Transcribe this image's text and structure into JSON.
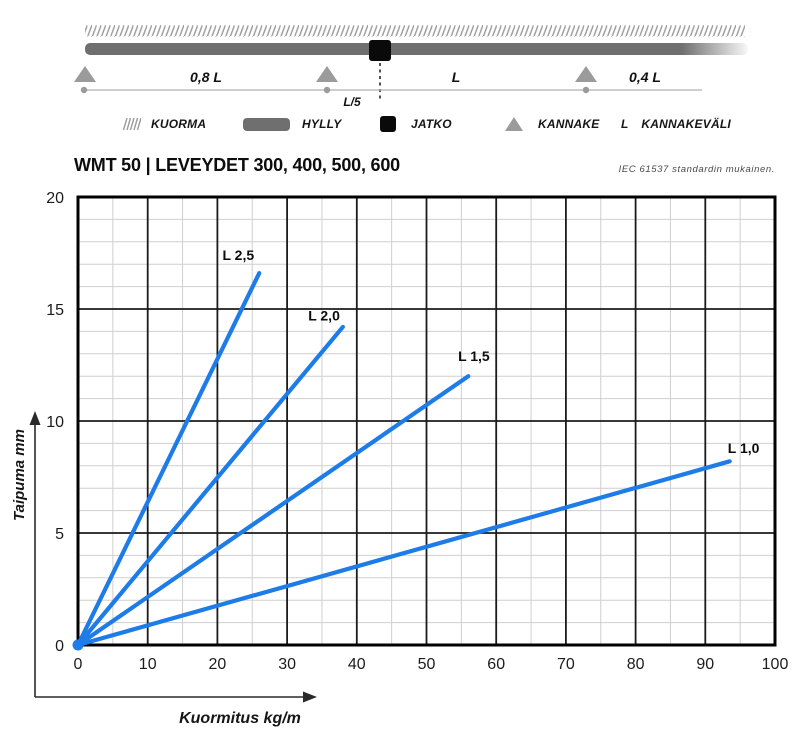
{
  "diagram": {
    "spans": {
      "left": "0,8 L",
      "middle": "L",
      "right": "0,4 L",
      "joint_offset": "L/5"
    }
  },
  "legend": {
    "items": [
      {
        "icon": "hatch-icon",
        "label": "KUORMA"
      },
      {
        "icon": "shelf-icon",
        "label": "HYLLY"
      },
      {
        "icon": "joint-icon",
        "label": "JATKO"
      },
      {
        "icon": "support-icon",
        "label": "KANNAKE"
      },
      {
        "icon": "letter-L",
        "symbol": "L",
        "label": "KANNAKEVÄLI"
      }
    ]
  },
  "chart_data": {
    "type": "line",
    "title": "WMT 50 | LEVEYDET 300, 400, 500, 600",
    "note": "IEC 61537 standardin mukainen.",
    "xlabel": "Kuormitus kg/m",
    "ylabel": "Taipuma mm",
    "xlim": [
      0,
      100
    ],
    "ylim": [
      0,
      20
    ],
    "x_ticks": [
      0,
      10,
      20,
      30,
      40,
      50,
      60,
      70,
      80,
      90,
      100
    ],
    "y_ticks": [
      0,
      5,
      10,
      15,
      20
    ],
    "x_major_step": 10,
    "x_minor_step": 5,
    "y_major_step": 5,
    "y_minor_step": 1,
    "grid": true,
    "legend_position": "inline-labels",
    "line_color": "#1d7ce8",
    "series": [
      {
        "name": "L 2,5",
        "points": [
          [
            0,
            0
          ],
          [
            26,
            16.6
          ]
        ],
        "label_at": [
          23,
          17.4
        ]
      },
      {
        "name": "L 2,0",
        "points": [
          [
            0,
            0
          ],
          [
            38,
            14.2
          ]
        ],
        "label_at": [
          35.3,
          14.7
        ]
      },
      {
        "name": "L 1,5",
        "points": [
          [
            0,
            0
          ],
          [
            56,
            12.0
          ]
        ],
        "label_at": [
          56.8,
          12.9
        ]
      },
      {
        "name": "L 1,0",
        "points": [
          [
            0,
            0
          ],
          [
            93.5,
            8.2
          ]
        ],
        "label_at": [
          95.5,
          8.8
        ]
      }
    ]
  }
}
